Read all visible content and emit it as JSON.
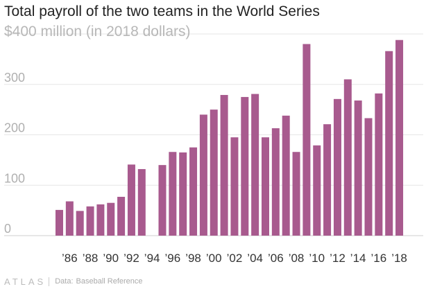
{
  "chart_data": {
    "type": "bar",
    "title": "Total payroll of the two teams in the World Series",
    "ylabel": "$400 million (in 2018 dollars)",
    "ylim": [
      0,
      400
    ],
    "yticks": [
      0,
      100,
      200,
      300
    ],
    "grid": true,
    "color": "#a85a8e",
    "categories": [
      "1985",
      "1986",
      "1987",
      "1988",
      "1989",
      "1990",
      "1991",
      "1992",
      "1993",
      "1994",
      "1995",
      "1996",
      "1997",
      "1998",
      "1999",
      "2000",
      "2001",
      "2002",
      "2003",
      "2004",
      "2005",
      "2006",
      "2007",
      "2008",
      "2009",
      "2010",
      "2011",
      "2012",
      "2013",
      "2014",
      "2015",
      "2016",
      "2017",
      "2018"
    ],
    "values": [
      51,
      68,
      49,
      58,
      62,
      65,
      77,
      141,
      132,
      null,
      140,
      166,
      165,
      175,
      240,
      250,
      279,
      195,
      275,
      281,
      195,
      213,
      238,
      166,
      380,
      179,
      221,
      271,
      310,
      268,
      233,
      282,
      366,
      388
    ],
    "xtick_labels": [
      "’86",
      "’88",
      "’90",
      "’92",
      "’94",
      "’96",
      "’98",
      "’00",
      "’02",
      "’04",
      "’06",
      "’08",
      "’10",
      "’12",
      "’14",
      "’16",
      "’18"
    ]
  },
  "footer": {
    "brand": "ATLAS",
    "source_label": "Data:",
    "source": "Baseball Reference"
  }
}
